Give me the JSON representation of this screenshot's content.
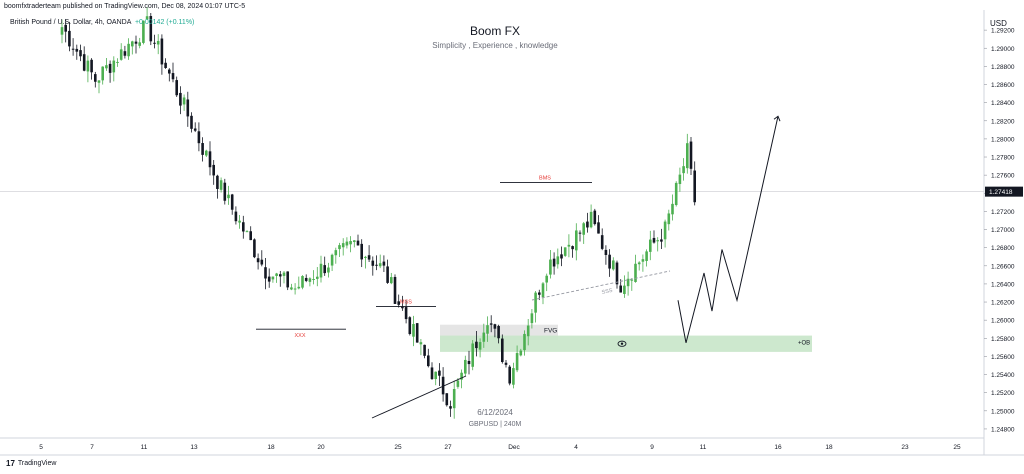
{
  "header": {
    "published_by": "boomfxtraderteam published on TradingView.com, Dec 08, 2024 01:07 UTC-5",
    "symbol_desc": "British Pound / U.S. Dollar, 4h, OANDA",
    "change": "+0.00142 (+0.11%)",
    "currency": "USD"
  },
  "watermark": {
    "title": "Boom FX",
    "subtitle": "Simplicity , Experience , knowledge",
    "date": "6/12/2024",
    "symbol_tf": "GBPUSD | 240M"
  },
  "footer": {
    "brand_mark": "17",
    "brand": "TradingView"
  },
  "colors": {
    "up": "#4caf50",
    "down": "#131722",
    "annotation_red": "#e53935",
    "ob_zone": "#c8e6c9",
    "fvg_zone": "#e0e0e0",
    "grid": "#f0f3fa",
    "current_price_bg": "#131722"
  },
  "chart_data": {
    "type": "candlestick",
    "symbol": "GBPUSD",
    "timeframe": "4h",
    "ylim": [
      1.247,
      1.294
    ],
    "y_ticks": [
      "1.29200",
      "1.29000",
      "1.28800",
      "1.28600",
      "1.28400",
      "1.28200",
      "1.28000",
      "1.27800",
      "1.27600",
      "1.27400",
      "1.27200",
      "1.27000",
      "1.26800",
      "1.26600",
      "1.26400",
      "1.26200",
      "1.26000",
      "1.25800",
      "1.25600",
      "1.25400",
      "1.25200",
      "1.25000",
      "1.24800"
    ],
    "x_ticks": [
      "5",
      "7",
      "11",
      "13",
      "18",
      "20",
      "25",
      "27",
      "Dec",
      "4",
      "9",
      "11",
      "16",
      "18",
      "23",
      "25"
    ],
    "current_price": "1.27418",
    "price_segments": [
      {
        "from": 0,
        "to": 5,
        "bars": 10,
        "start": 1.293,
        "end": 1.2865
      },
      {
        "from": 5,
        "to": 12,
        "bars": 14,
        "start": 1.2865,
        "end": 1.2925
      },
      {
        "from": 12,
        "to": 22,
        "bars": 20,
        "start": 1.2925,
        "end": 1.2745
      },
      {
        "from": 22,
        "to": 28,
        "bars": 12,
        "start": 1.2745,
        "end": 1.2655
      },
      {
        "from": 28,
        "to": 32,
        "bars": 8,
        "start": 1.2655,
        "end": 1.2635
      },
      {
        "from": 32,
        "to": 40,
        "bars": 16,
        "start": 1.2635,
        "end": 1.2685
      },
      {
        "from": 40,
        "to": 44,
        "bars": 8,
        "start": 1.2685,
        "end": 1.2655
      },
      {
        "from": 44,
        "to": 50,
        "bars": 12,
        "start": 1.2655,
        "end": 1.255
      },
      {
        "from": 50,
        "to": 53,
        "bars": 6,
        "start": 1.255,
        "end": 1.251
      },
      {
        "from": 53,
        "to": 58,
        "bars": 10,
        "start": 1.251,
        "end": 1.2605
      },
      {
        "from": 58,
        "to": 61,
        "bars": 6,
        "start": 1.2605,
        "end": 1.254
      },
      {
        "from": 61,
        "to": 66,
        "bars": 10,
        "start": 1.254,
        "end": 1.266
      },
      {
        "from": 66,
        "to": 72,
        "bars": 12,
        "start": 1.266,
        "end": 1.271
      },
      {
        "from": 72,
        "to": 76,
        "bars": 8,
        "start": 1.271,
        "end": 1.264
      },
      {
        "from": 76,
        "to": 82,
        "bars": 12,
        "start": 1.264,
        "end": 1.27
      },
      {
        "from": 82,
        "to": 85,
        "bars": 6,
        "start": 1.27,
        "end": 1.2785
      },
      {
        "from": 85,
        "to": 86,
        "bars": 2,
        "start": 1.2785,
        "end": 1.2732
      }
    ],
    "annotations": {
      "xxx": {
        "label": "XXX",
        "price": 1.259
      },
      "mss": {
        "label": "MSS",
        "price": 1.2615
      },
      "bms": {
        "label": "BMS",
        "price": 1.2752
      },
      "sss": {
        "label": "SSS"
      },
      "fvg": {
        "label": "FVG",
        "top": 1.2595,
        "bottom": 1.2578
      },
      "ob": {
        "label": "+OB",
        "top": 1.2583,
        "bottom": 1.2565
      }
    },
    "projection": [
      [
        1.2622,
        1.2575,
        1.2652,
        1.261,
        1.2678,
        1.2622,
        1.2825
      ]
    ]
  }
}
